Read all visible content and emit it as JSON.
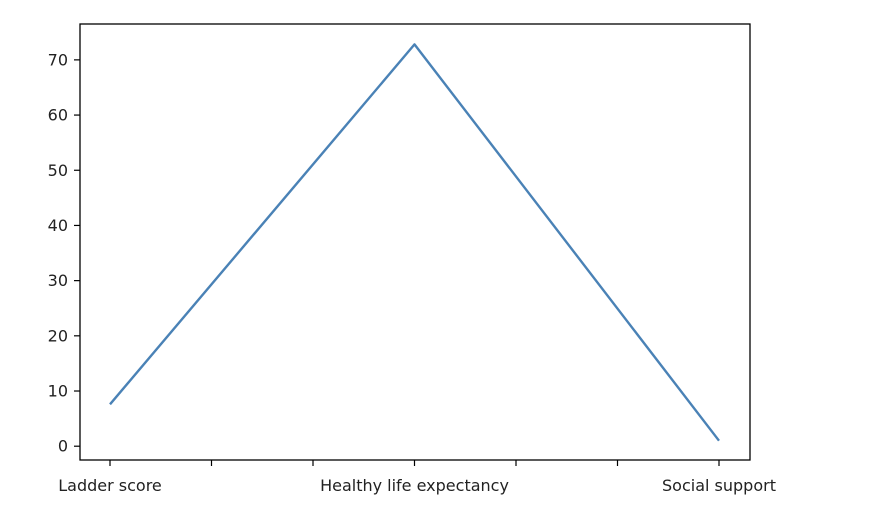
{
  "chart_data": {
    "type": "line",
    "title": "",
    "xlabel": "",
    "ylabel": "",
    "categories": [
      "Ladder score",
      "Healthy life expectancy",
      "Social support"
    ],
    "x_tick_labels": [
      "Ladder score",
      "Healthy life expectancy",
      "Social support"
    ],
    "x_minor_ticks": 2,
    "series": [
      {
        "values": [
          7.6,
          72.8,
          1.0
        ]
      }
    ],
    "ylim": [
      -2.5,
      76.5
    ],
    "yticks": [
      0,
      10,
      20,
      30,
      40,
      50,
      60,
      70
    ],
    "grid": false,
    "legend": "none",
    "colors": {
      "line": "#4a82b6",
      "axis": "#000000",
      "text": "#222222"
    }
  }
}
